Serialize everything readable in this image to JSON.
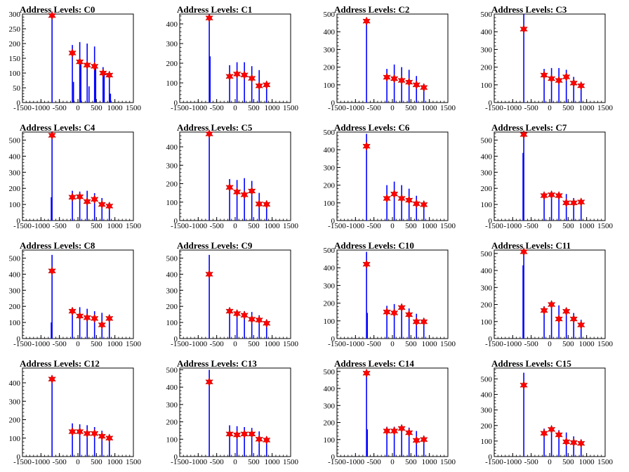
{
  "chart_data": [
    {
      "type": "histogram",
      "title": "Address Levels: C0",
      "xlim": [
        -1500,
        1500
      ],
      "ylim": [
        0,
        300
      ],
      "yticks": [
        0,
        50,
        100,
        150,
        200,
        250,
        300
      ],
      "xticks": [
        -1500,
        -1000,
        -500,
        0,
        500,
        1000,
        1500
      ],
      "bars": [
        [
          -700,
          300
        ],
        [
          -150,
          195
        ],
        [
          -120,
          70
        ],
        [
          50,
          205
        ],
        [
          80,
          135
        ],
        [
          250,
          200
        ],
        [
          300,
          55
        ],
        [
          450,
          190
        ],
        [
          480,
          125
        ],
        [
          680,
          120
        ],
        [
          710,
          100
        ],
        [
          850,
          95
        ],
        [
          880,
          30
        ]
      ],
      "markers": [
        [
          -700,
          295
        ],
        [
          -150,
          168
        ],
        [
          50,
          138
        ],
        [
          250,
          127
        ],
        [
          450,
          123
        ],
        [
          680,
          100
        ],
        [
          850,
          93
        ]
      ]
    },
    {
      "type": "histogram",
      "title": "Address Levels: C1",
      "xlim": [
        -1500,
        1500
      ],
      "ylim": [
        0,
        450
      ],
      "yticks": [
        0,
        100,
        200,
        300,
        400
      ],
      "xticks": [
        -1500,
        -1000,
        -500,
        0,
        500,
        1000,
        1500
      ],
      "bars": [
        [
          -700,
          450
        ],
        [
          -680,
          235
        ],
        [
          -150,
          190
        ],
        [
          50,
          205
        ],
        [
          250,
          205
        ],
        [
          450,
          185
        ],
        [
          650,
          165
        ],
        [
          850,
          100
        ]
      ],
      "markers": [
        [
          -700,
          430
        ],
        [
          -150,
          133
        ],
        [
          50,
          145
        ],
        [
          250,
          140
        ],
        [
          450,
          123
        ],
        [
          650,
          85
        ],
        [
          850,
          90
        ]
      ]
    },
    {
      "type": "histogram",
      "title": "Address Levels: C2",
      "xlim": [
        -1500,
        1500
      ],
      "ylim": [
        0,
        500
      ],
      "yticks": [
        0,
        100,
        200,
        300,
        400,
        500
      ],
      "xticks": [
        -1500,
        -1000,
        -500,
        0,
        500,
        1000,
        1500
      ],
      "bars": [
        [
          -700,
          470
        ],
        [
          -150,
          190
        ],
        [
          50,
          215
        ],
        [
          250,
          200
        ],
        [
          450,
          185
        ],
        [
          650,
          150
        ],
        [
          850,
          100
        ]
      ],
      "markers": [
        [
          -700,
          460
        ],
        [
          -150,
          143
        ],
        [
          50,
          135
        ],
        [
          250,
          125
        ],
        [
          450,
          115
        ],
        [
          650,
          100
        ],
        [
          850,
          85
        ]
      ]
    },
    {
      "type": "histogram",
      "title": "Address Levels: C3",
      "xlim": [
        -1500,
        1500
      ],
      "ylim": [
        0,
        500
      ],
      "yticks": [
        0,
        100,
        200,
        300,
        400,
        500
      ],
      "xticks": [
        -1500,
        -1000,
        -500,
        0,
        500,
        1000,
        1500
      ],
      "bars": [
        [
          -700,
          500
        ],
        [
          -150,
          190
        ],
        [
          50,
          195
        ],
        [
          250,
          195
        ],
        [
          450,
          185
        ],
        [
          650,
          145
        ],
        [
          850,
          100
        ]
      ],
      "markers": [
        [
          -700,
          415
        ],
        [
          -150,
          155
        ],
        [
          50,
          135
        ],
        [
          250,
          125
        ],
        [
          450,
          145
        ],
        [
          650,
          110
        ],
        [
          850,
          95
        ]
      ]
    },
    {
      "type": "histogram",
      "title": "Address Levels: C4",
      "xlim": [
        -1500,
        1500
      ],
      "ylim": [
        0,
        550
      ],
      "yticks": [
        0,
        100,
        200,
        300,
        400,
        500
      ],
      "xticks": [
        -1500,
        -1000,
        -500,
        0,
        500,
        1000,
        1500
      ],
      "bars": [
        [
          -700,
          550
        ],
        [
          -720,
          145
        ],
        [
          -150,
          185
        ],
        [
          50,
          180
        ],
        [
          250,
          185
        ],
        [
          450,
          170
        ],
        [
          650,
          140
        ],
        [
          850,
          110
        ]
      ],
      "markers": [
        [
          -700,
          530
        ],
        [
          -150,
          145
        ],
        [
          50,
          148
        ],
        [
          250,
          118
        ],
        [
          450,
          132
        ],
        [
          650,
          100
        ],
        [
          850,
          90
        ]
      ]
    },
    {
      "type": "histogram",
      "title": "Address Levels: C5",
      "xlim": [
        -1500,
        1500
      ],
      "ylim": [
        0,
        480
      ],
      "yticks": [
        0,
        100,
        200,
        300,
        400
      ],
      "xticks": [
        -1500,
        -1000,
        -500,
        0,
        500,
        1000,
        1500
      ],
      "bars": [
        [
          -700,
          480
        ],
        [
          -150,
          225
        ],
        [
          50,
          220
        ],
        [
          250,
          230
        ],
        [
          450,
          215
        ],
        [
          650,
          150
        ],
        [
          850,
          100
        ]
      ],
      "markers": [
        [
          -700,
          470
        ],
        [
          -150,
          180
        ],
        [
          50,
          155
        ],
        [
          250,
          140
        ],
        [
          450,
          160
        ],
        [
          650,
          90
        ],
        [
          850,
          88
        ]
      ]
    },
    {
      "type": "histogram",
      "title": "Address Levels: C6",
      "xlim": [
        -1500,
        1500
      ],
      "ylim": [
        0,
        500
      ],
      "yticks": [
        0,
        100,
        200,
        300,
        400,
        500
      ],
      "xticks": [
        -1500,
        -1000,
        -500,
        0,
        500,
        1000,
        1500
      ],
      "bars": [
        [
          -700,
          490
        ],
        [
          -150,
          200
        ],
        [
          50,
          220
        ],
        [
          250,
          200
        ],
        [
          450,
          180
        ],
        [
          650,
          140
        ],
        [
          850,
          100
        ]
      ],
      "markers": [
        [
          -700,
          420
        ],
        [
          -150,
          125
        ],
        [
          50,
          150
        ],
        [
          250,
          125
        ],
        [
          450,
          115
        ],
        [
          650,
          95
        ],
        [
          850,
          90
        ]
      ]
    },
    {
      "type": "histogram",
      "title": "Address Levels: C7",
      "xlim": [
        -1500,
        1500
      ],
      "ylim": [
        0,
        550
      ],
      "yticks": [
        0,
        100,
        200,
        300,
        400,
        500
      ],
      "xticks": [
        -1500,
        -1000,
        -500,
        0,
        500,
        1000,
        1500
      ],
      "bars": [
        [
          -700,
          550
        ],
        [
          -720,
          420
        ],
        [
          -150,
          170
        ],
        [
          50,
          175
        ],
        [
          250,
          170
        ],
        [
          450,
          165
        ],
        [
          650,
          140
        ],
        [
          850,
          120
        ]
      ],
      "markers": [
        [
          -700,
          535
        ],
        [
          -150,
          155
        ],
        [
          50,
          160
        ],
        [
          250,
          155
        ],
        [
          450,
          110
        ],
        [
          650,
          110
        ],
        [
          850,
          115
        ]
      ]
    },
    {
      "type": "histogram",
      "title": "Address Levels: C8",
      "xlim": [
        -1500,
        1500
      ],
      "ylim": [
        0,
        550
      ],
      "yticks": [
        0,
        100,
        200,
        300,
        400,
        500
      ],
      "xticks": [
        -1500,
        -1000,
        -500,
        0,
        500,
        1000,
        1500
      ],
      "bars": [
        [
          -700,
          520
        ],
        [
          -720,
          100
        ],
        [
          -150,
          190
        ],
        [
          50,
          195
        ],
        [
          250,
          185
        ],
        [
          450,
          170
        ],
        [
          650,
          160
        ],
        [
          850,
          130
        ]
      ],
      "markers": [
        [
          -700,
          420
        ],
        [
          -150,
          170
        ],
        [
          50,
          140
        ],
        [
          250,
          130
        ],
        [
          450,
          125
        ],
        [
          650,
          85
        ],
        [
          850,
          125
        ]
      ]
    },
    {
      "type": "histogram",
      "title": "Address Levels: C9",
      "xlim": [
        -1500,
        1500
      ],
      "ylim": [
        0,
        550
      ],
      "yticks": [
        0,
        100,
        200,
        300,
        400,
        500
      ],
      "xticks": [
        -1500,
        -1000,
        -500,
        0,
        500,
        1000,
        1500
      ],
      "bars": [
        [
          -700,
          520
        ],
        [
          -150,
          175
        ],
        [
          50,
          175
        ],
        [
          250,
          170
        ],
        [
          450,
          165
        ],
        [
          650,
          145
        ],
        [
          850,
          110
        ]
      ],
      "markers": [
        [
          -700,
          400
        ],
        [
          -150,
          170
        ],
        [
          50,
          155
        ],
        [
          250,
          145
        ],
        [
          450,
          120
        ],
        [
          650,
          115
        ],
        [
          850,
          95
        ]
      ]
    },
    {
      "type": "histogram",
      "title": "Address Levels: C10",
      "xlim": [
        -1500,
        1500
      ],
      "ylim": [
        0,
        500
      ],
      "yticks": [
        0,
        100,
        200,
        300,
        400,
        500
      ],
      "xticks": [
        -1500,
        -1000,
        -500,
        0,
        500,
        1000,
        1500
      ],
      "bars": [
        [
          -700,
          490
        ],
        [
          -680,
          145
        ],
        [
          -150,
          185
        ],
        [
          50,
          195
        ],
        [
          250,
          185
        ],
        [
          450,
          170
        ],
        [
          650,
          140
        ],
        [
          850,
          100
        ]
      ],
      "markers": [
        [
          -700,
          420
        ],
        [
          -150,
          150
        ],
        [
          50,
          145
        ],
        [
          250,
          175
        ],
        [
          450,
          135
        ],
        [
          650,
          95
        ],
        [
          850,
          95
        ]
      ]
    },
    {
      "type": "histogram",
      "title": "Address Levels: C11",
      "xlim": [
        -1500,
        1500
      ],
      "ylim": [
        0,
        520
      ],
      "yticks": [
        0,
        100,
        200,
        300,
        400,
        500
      ],
      "xticks": [
        -1500,
        -1000,
        -500,
        0,
        500,
        1000,
        1500
      ],
      "bars": [
        [
          -700,
          520
        ],
        [
          -720,
          430
        ],
        [
          -150,
          190
        ],
        [
          50,
          200
        ],
        [
          250,
          195
        ],
        [
          450,
          180
        ],
        [
          650,
          150
        ],
        [
          850,
          110
        ]
      ],
      "markers": [
        [
          -700,
          510
        ],
        [
          -150,
          165
        ],
        [
          50,
          200
        ],
        [
          250,
          115
        ],
        [
          450,
          160
        ],
        [
          650,
          115
        ],
        [
          850,
          80
        ]
      ]
    },
    {
      "type": "histogram",
      "title": "Address Levels: C12",
      "xlim": [
        -1500,
        1500
      ],
      "ylim": [
        0,
        480
      ],
      "yticks": [
        0,
        100,
        200,
        300,
        400
      ],
      "xticks": [
        -1500,
        -1000,
        -500,
        0,
        500,
        1000,
        1500
      ],
      "bars": [
        [
          -700,
          440
        ],
        [
          -150,
          180
        ],
        [
          50,
          175
        ],
        [
          250,
          170
        ],
        [
          450,
          160
        ],
        [
          650,
          140
        ],
        [
          850,
          110
        ]
      ],
      "markers": [
        [
          -700,
          420
        ],
        [
          -150,
          135
        ],
        [
          50,
          135
        ],
        [
          250,
          125
        ],
        [
          450,
          125
        ],
        [
          650,
          110
        ],
        [
          850,
          100
        ]
      ]
    },
    {
      "type": "histogram",
      "title": "Address Levels: C13",
      "xlim": [
        -1500,
        1500
      ],
      "ylim": [
        0,
        510
      ],
      "yticks": [
        0,
        100,
        200,
        300,
        400,
        500
      ],
      "xticks": [
        -1500,
        -1000,
        -500,
        0,
        500,
        1000,
        1500
      ],
      "bars": [
        [
          -700,
          500
        ],
        [
          -150,
          180
        ],
        [
          50,
          175
        ],
        [
          250,
          170
        ],
        [
          450,
          165
        ],
        [
          650,
          145
        ],
        [
          850,
          110
        ]
      ],
      "markers": [
        [
          -700,
          430
        ],
        [
          -150,
          130
        ],
        [
          50,
          125
        ],
        [
          250,
          130
        ],
        [
          450,
          130
        ],
        [
          650,
          100
        ],
        [
          850,
          95
        ]
      ]
    },
    {
      "type": "histogram",
      "title": "Address Levels: C14",
      "xlim": [
        -1500,
        1500
      ],
      "ylim": [
        0,
        520
      ],
      "yticks": [
        0,
        100,
        200,
        300,
        400,
        500
      ],
      "xticks": [
        -1500,
        -1000,
        -500,
        0,
        500,
        1000,
        1500
      ],
      "bars": [
        [
          -700,
          490
        ],
        [
          -680,
          160
        ],
        [
          -150,
          175
        ],
        [
          50,
          175
        ],
        [
          250,
          175
        ],
        [
          450,
          170
        ],
        [
          650,
          150
        ],
        [
          850,
          110
        ]
      ],
      "markers": [
        [
          -700,
          490
        ],
        [
          -150,
          150
        ],
        [
          50,
          150
        ],
        [
          250,
          165
        ],
        [
          450,
          140
        ],
        [
          650,
          95
        ],
        [
          850,
          100
        ]
      ]
    },
    {
      "type": "histogram",
      "title": "Address Levels: C15",
      "xlim": [
        -1500,
        1500
      ],
      "ylim": [
        0,
        570
      ],
      "yticks": [
        0,
        100,
        200,
        300,
        400,
        500
      ],
      "xticks": [
        -1500,
        -1000,
        -500,
        0,
        500,
        1000,
        1500
      ],
      "bars": [
        [
          -700,
          540
        ],
        [
          -150,
          180
        ],
        [
          50,
          175
        ],
        [
          250,
          170
        ],
        [
          450,
          155
        ],
        [
          650,
          130
        ],
        [
          850,
          110
        ]
      ],
      "markers": [
        [
          -700,
          460
        ],
        [
          -150,
          150
        ],
        [
          50,
          175
        ],
        [
          250,
          140
        ],
        [
          450,
          95
        ],
        [
          650,
          90
        ],
        [
          850,
          85
        ]
      ]
    }
  ],
  "colors": {
    "bar": "#0000ff",
    "marker": "#ff0000",
    "marker_edge": "#b00000",
    "axis": "#000000"
  }
}
